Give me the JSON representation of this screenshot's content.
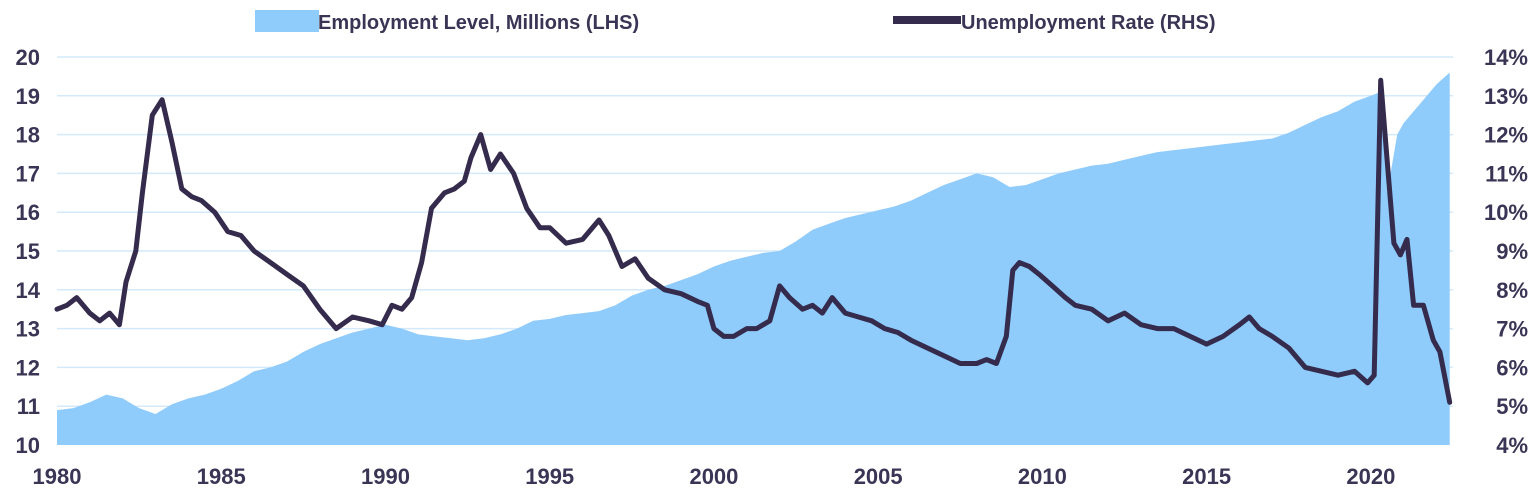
{
  "chart_data": {
    "type": "area+line",
    "title": "",
    "xlabel": "",
    "ylabel_left": "",
    "ylabel_right": "",
    "x_range": [
      1980,
      2022.5
    ],
    "x_ticks": [
      "1980",
      "1985",
      "1990",
      "1995",
      "2000",
      "2005",
      "2010",
      "2015",
      "2020"
    ],
    "y_left": {
      "range": [
        10,
        20
      ],
      "ticks": [
        "10",
        "11",
        "12",
        "13",
        "14",
        "15",
        "16",
        "17",
        "18",
        "19",
        "20"
      ]
    },
    "y_right": {
      "range": [
        4,
        14
      ],
      "ticks": [
        "4%",
        "5%",
        "6%",
        "7%",
        "8%",
        "9%",
        "10%",
        "11%",
        "12%",
        "13%",
        "14%"
      ]
    },
    "grid": "horizontal",
    "legend_placement": "top",
    "series": [
      {
        "name": "Employment Level, Millions (LHS)",
        "type": "area",
        "axis": "left",
        "color": "#8fcbfb",
        "x": [
          1980.0,
          1980.5,
          1981.0,
          1981.5,
          1982.0,
          1982.5,
          1983.0,
          1983.5,
          1984.0,
          1984.5,
          1985.0,
          1985.5,
          1986.0,
          1986.5,
          1987.0,
          1987.5,
          1988.0,
          1988.5,
          1989.0,
          1989.5,
          1990.0,
          1990.5,
          1991.0,
          1991.5,
          1992.0,
          1992.5,
          1993.0,
          1993.5,
          1994.0,
          1994.5,
          1995.0,
          1995.5,
          1996.0,
          1996.5,
          1997.0,
          1997.5,
          1998.0,
          1998.5,
          1999.0,
          1999.5,
          2000.0,
          2000.5,
          2001.0,
          2001.5,
          2002.0,
          2002.5,
          2003.0,
          2003.5,
          2004.0,
          2004.5,
          2005.0,
          2005.5,
          2006.0,
          2006.5,
          2007.0,
          2007.5,
          2008.0,
          2008.5,
          2009.0,
          2009.5,
          2010.0,
          2010.5,
          2011.0,
          2011.5,
          2012.0,
          2012.5,
          2013.0,
          2013.5,
          2014.0,
          2014.5,
          2015.0,
          2015.5,
          2016.0,
          2016.5,
          2017.0,
          2017.5,
          2018.0,
          2018.5,
          2019.0,
          2019.5,
          2020.0,
          2020.3,
          2020.5,
          2020.8,
          2021.0,
          2021.5,
          2022.0,
          2022.4
        ],
        "values": [
          10.9,
          10.95,
          11.1,
          11.3,
          11.2,
          10.95,
          10.8,
          11.05,
          11.2,
          11.3,
          11.45,
          11.65,
          11.9,
          12.0,
          12.15,
          12.4,
          12.6,
          12.75,
          12.9,
          13.0,
          13.1,
          13.0,
          12.85,
          12.8,
          12.75,
          12.7,
          12.75,
          12.85,
          13.0,
          13.2,
          13.25,
          13.35,
          13.4,
          13.45,
          13.6,
          13.85,
          14.0,
          14.1,
          14.25,
          14.4,
          14.6,
          14.75,
          14.85,
          14.95,
          15.0,
          15.25,
          15.55,
          15.7,
          15.85,
          15.95,
          16.05,
          16.15,
          16.3,
          16.5,
          16.7,
          16.85,
          17.0,
          16.9,
          16.65,
          16.7,
          16.85,
          17.0,
          17.1,
          17.2,
          17.25,
          17.35,
          17.45,
          17.55,
          17.6,
          17.65,
          17.7,
          17.75,
          17.8,
          17.85,
          17.9,
          18.05,
          18.25,
          18.45,
          18.6,
          18.85,
          19.0,
          19.1,
          16.5,
          18.0,
          18.3,
          18.8,
          19.3,
          19.6
        ]
      },
      {
        "name": "Unemployment Rate (RHS)",
        "type": "line",
        "axis": "right",
        "color": "#342b4d",
        "x": [
          1980.0,
          1980.3,
          1980.6,
          1981.0,
          1981.3,
          1981.6,
          1981.9,
          1982.1,
          1982.4,
          1982.6,
          1982.9,
          1983.2,
          1983.5,
          1983.8,
          1984.1,
          1984.4,
          1984.8,
          1985.2,
          1985.6,
          1986.0,
          1986.5,
          1987.0,
          1987.5,
          1988.0,
          1988.5,
          1989.0,
          1989.5,
          1989.9,
          1990.2,
          1990.5,
          1990.8,
          1991.1,
          1991.4,
          1991.8,
          1992.1,
          1992.4,
          1992.6,
          1992.9,
          1993.2,
          1993.5,
          1993.9,
          1994.3,
          1994.7,
          1995.0,
          1995.5,
          1996.0,
          1996.5,
          1996.8,
          1997.2,
          1997.6,
          1998.0,
          1998.5,
          1999.0,
          1999.5,
          1999.8,
          2000.0,
          2000.3,
          2000.6,
          2001.0,
          2001.3,
          2001.7,
          2002.0,
          2002.3,
          2002.7,
          2003.0,
          2003.3,
          2003.6,
          2004.0,
          2004.4,
          2004.8,
          2005.2,
          2005.6,
          2006.0,
          2006.5,
          2007.0,
          2007.5,
          2008.0,
          2008.3,
          2008.6,
          2008.9,
          2009.1,
          2009.3,
          2009.6,
          2009.9,
          2010.3,
          2010.7,
          2011.0,
          2011.5,
          2012.0,
          2012.5,
          2013.0,
          2013.5,
          2014.0,
          2014.5,
          2015.0,
          2015.5,
          2016.0,
          2016.3,
          2016.6,
          2017.0,
          2017.5,
          2018.0,
          2018.5,
          2019.0,
          2019.5,
          2019.9,
          2020.1,
          2020.3,
          2020.45,
          2020.7,
          2020.9,
          2021.1,
          2021.3,
          2021.6,
          2021.9,
          2022.1,
          2022.4
        ],
        "values": [
          7.5,
          7.6,
          7.8,
          7.4,
          7.2,
          7.4,
          7.1,
          8.2,
          9.0,
          10.5,
          12.5,
          12.9,
          11.8,
          10.6,
          10.4,
          10.3,
          10.0,
          9.5,
          9.4,
          9.0,
          8.7,
          8.4,
          8.1,
          7.5,
          7.0,
          7.3,
          7.2,
          7.1,
          7.6,
          7.5,
          7.8,
          8.7,
          10.1,
          10.5,
          10.6,
          10.8,
          11.4,
          12.0,
          11.1,
          11.5,
          11.0,
          10.1,
          9.6,
          9.6,
          9.2,
          9.3,
          9.8,
          9.4,
          8.6,
          8.8,
          8.3,
          8.0,
          7.9,
          7.7,
          7.6,
          7.0,
          6.8,
          6.8,
          7.0,
          7.0,
          7.2,
          8.1,
          7.8,
          7.5,
          7.6,
          7.4,
          7.8,
          7.4,
          7.3,
          7.2,
          7.0,
          6.9,
          6.7,
          6.5,
          6.3,
          6.1,
          6.1,
          6.2,
          6.1,
          6.8,
          8.5,
          8.7,
          8.6,
          8.4,
          8.1,
          7.8,
          7.6,
          7.5,
          7.2,
          7.4,
          7.1,
          7.0,
          7.0,
          6.8,
          6.6,
          6.8,
          7.1,
          7.3,
          7.0,
          6.8,
          6.5,
          6.0,
          5.9,
          5.8,
          5.9,
          5.6,
          5.8,
          13.4,
          11.8,
          9.2,
          8.9,
          9.3,
          7.6,
          7.6,
          6.7,
          6.4,
          5.1
        ]
      }
    ]
  }
}
